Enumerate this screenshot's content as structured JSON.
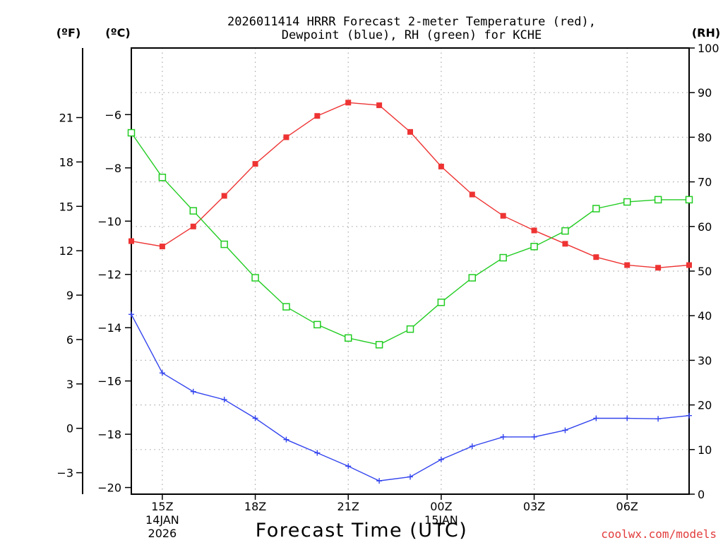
{
  "chart_data": {
    "type": "line",
    "title_line1": "2026011414 HRRR Forecast 2-meter Temperature (red),",
    "title_line2": "Dewpoint (blue), RH (green) for KCHE",
    "left_unit_f": "(ºF)",
    "left_unit_c": "(ºC)",
    "right_unit": "(RH)",
    "xlabel": "Forecast Time (UTC)",
    "credit": "coolwx.com/models",
    "xlim": [
      14,
      32
    ],
    "ylim_c": [
      -20.25,
      -3.5
    ],
    "ylim_rh": [
      0,
      100
    ],
    "x_ticks": [
      {
        "x": 15,
        "label": "15Z",
        "sub1": "14JAN",
        "sub2": "2026"
      },
      {
        "x": 18,
        "label": "18Z",
        "sub1": "",
        "sub2": ""
      },
      {
        "x": 21,
        "label": "21Z",
        "sub1": "",
        "sub2": ""
      },
      {
        "x": 24,
        "label": "00Z",
        "sub1": "15JAN",
        "sub2": ""
      },
      {
        "x": 27,
        "label": "03Z",
        "sub1": "",
        "sub2": ""
      },
      {
        "x": 30,
        "label": "06Z",
        "sub1": "",
        "sub2": ""
      }
    ],
    "c_ticks": [
      -20,
      -18,
      -16,
      -14,
      -12,
      -10,
      -8,
      -6
    ],
    "c_tick_labels": [
      "−20",
      "−18",
      "−16",
      "−14",
      "−12",
      "−10",
      "−8",
      "−6"
    ],
    "f_ticks": [
      -3,
      0,
      3,
      6,
      9,
      12,
      15,
      18,
      21
    ],
    "f_tick_labels": [
      "−3",
      "0",
      "3",
      "6",
      "9",
      "12",
      "15",
      "18",
      "21"
    ],
    "rh_ticks": [
      0,
      10,
      20,
      30,
      40,
      50,
      60,
      70,
      80,
      90,
      100
    ],
    "rh_tick_labels": [
      "0",
      "10",
      "20",
      "30",
      "40",
      "50",
      "60",
      "70",
      "80",
      "90",
      "100"
    ],
    "x": [
      14,
      15,
      16,
      17,
      18,
      19,
      20,
      21,
      22,
      23,
      24,
      25,
      26,
      27,
      28,
      29,
      30,
      31,
      32
    ],
    "series": [
      {
        "name": "Temperature",
        "unit": "C",
        "color": "#ee3333",
        "marker": "filled-square",
        "values": [
          -10.75,
          -10.95,
          -10.2,
          -9.05,
          -7.85,
          -6.85,
          -6.05,
          -5.55,
          -5.65,
          -6.65,
          -7.95,
          -9.0,
          -9.8,
          -10.35,
          -10.85,
          -11.35,
          -11.65,
          -11.75,
          -11.65
        ]
      },
      {
        "name": "Dewpoint",
        "unit": "C",
        "color": "#3344ee",
        "marker": "plus",
        "values": [
          -13.5,
          -15.7,
          -16.4,
          -16.7,
          -17.4,
          -18.2,
          -18.7,
          -19.2,
          -19.75,
          -19.6,
          -18.95,
          -18.45,
          -18.1,
          -18.1,
          -17.85,
          -17.4,
          -17.4,
          -17.42,
          -17.3
        ]
      },
      {
        "name": "RH",
        "unit": "%",
        "color": "#22cc22",
        "marker": "open-square",
        "values": [
          81,
          71,
          63.5,
          56,
          48.5,
          42,
          38,
          35,
          33.5,
          37,
          43,
          48.5,
          53,
          55.5,
          59,
          64,
          65.5,
          66,
          66
        ]
      }
    ]
  }
}
